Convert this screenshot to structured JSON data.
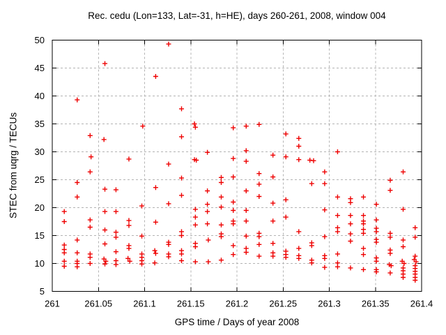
{
  "chart_data": {
    "type": "scatter",
    "title": "Rec. cedu (Lon=133, Lat=-31, h=HE), days 260-261, 2008, window 004",
    "xlabel": "GPS time / Days of year 2008",
    "ylabel": "STEC from uqrg / TECUs",
    "xlim": [
      261,
      261.4
    ],
    "ylim": [
      5,
      50
    ],
    "x_ticks": [
      261,
      261.05,
      261.1,
      261.15,
      261.2,
      261.25,
      261.3,
      261.35,
      261.4
    ],
    "x_tick_labels": [
      "261",
      "261.05",
      "261.1",
      "261.15",
      "261.2",
      "261.25",
      "261.3",
      "261.35",
      "261.4"
    ],
    "y_ticks": [
      5,
      10,
      15,
      20,
      25,
      30,
      35,
      40,
      45,
      50
    ],
    "y_tick_labels": [
      "5",
      "10",
      "15",
      "20",
      "25",
      "30",
      "35",
      "40",
      "45",
      "50"
    ],
    "grid": true,
    "legend": "none",
    "marker": "plus",
    "marker_color": "#ee0000",
    "grid_color": "#b3b3b3",
    "frame_color": "#000000",
    "series": [
      {
        "name": "STEC",
        "points": [
          [
            261.013,
            19.3
          ],
          [
            261.013,
            17.5
          ],
          [
            261.013,
            13.3
          ],
          [
            261.013,
            12.5
          ],
          [
            261.013,
            11.9
          ],
          [
            261.013,
            10.4
          ],
          [
            261.013,
            9.5
          ],
          [
            261.027,
            39.3
          ],
          [
            261.027,
            24.5
          ],
          [
            261.027,
            21.9
          ],
          [
            261.027,
            14.2
          ],
          [
            261.027,
            11.9
          ],
          [
            261.027,
            10.4
          ],
          [
            261.027,
            10.0
          ],
          [
            261.027,
            9.4
          ],
          [
            261.041,
            32.9
          ],
          [
            261.042,
            29.1
          ],
          [
            261.041,
            26.4
          ],
          [
            261.041,
            17.8
          ],
          [
            261.041,
            16.5
          ],
          [
            261.041,
            11.7
          ],
          [
            261.041,
            11.1
          ],
          [
            261.041,
            10.0
          ],
          [
            261.057,
            45.8
          ],
          [
            261.056,
            32.2
          ],
          [
            261.057,
            23.3
          ],
          [
            261.057,
            19.3
          ],
          [
            261.057,
            16.0
          ],
          [
            261.057,
            13.5
          ],
          [
            261.056,
            10.8
          ],
          [
            261.058,
            10.4
          ],
          [
            261.057,
            9.9
          ],
          [
            261.069,
            23.2
          ],
          [
            261.069,
            19.3
          ],
          [
            261.069,
            15.6
          ],
          [
            261.069,
            14.7
          ],
          [
            261.069,
            12.1
          ],
          [
            261.069,
            10.5
          ],
          [
            261.069,
            9.8
          ],
          [
            261.083,
            28.7
          ],
          [
            261.083,
            17.7
          ],
          [
            261.083,
            16.8
          ],
          [
            261.083,
            13.2
          ],
          [
            261.083,
            12.7
          ],
          [
            261.082,
            10.9
          ],
          [
            261.084,
            10.4
          ],
          [
            261.098,
            34.6
          ],
          [
            261.097,
            20.3
          ],
          [
            261.097,
            14.9
          ],
          [
            261.097,
            11.7
          ],
          [
            261.097,
            11.1
          ],
          [
            261.097,
            10.5
          ],
          [
            261.097,
            9.9
          ],
          [
            261.112,
            43.5
          ],
          [
            261.112,
            23.6
          ],
          [
            261.112,
            17.4
          ],
          [
            261.111,
            12.3
          ],
          [
            261.112,
            11.8
          ],
          [
            261.111,
            10.1
          ],
          [
            261.126,
            49.3
          ],
          [
            261.126,
            27.8
          ],
          [
            261.126,
            20.7
          ],
          [
            261.126,
            13.8
          ],
          [
            261.126,
            13.4
          ],
          [
            261.126,
            11.7
          ],
          [
            261.126,
            11.2
          ],
          [
            261.14,
            37.7
          ],
          [
            261.14,
            32.7
          ],
          [
            261.14,
            25.3
          ],
          [
            261.14,
            22.2
          ],
          [
            261.14,
            15.7
          ],
          [
            261.14,
            15.0
          ],
          [
            261.14,
            12.3
          ],
          [
            261.14,
            11.7
          ],
          [
            261.14,
            10.5
          ],
          [
            261.154,
            35.0
          ],
          [
            261.155,
            34.4
          ],
          [
            261.154,
            28.6
          ],
          [
            261.156,
            28.5
          ],
          [
            261.155,
            19.7
          ],
          [
            261.155,
            18.3
          ],
          [
            261.155,
            16.9
          ],
          [
            261.155,
            13.6
          ],
          [
            261.155,
            13.0
          ],
          [
            261.155,
            10.3
          ],
          [
            261.168,
            29.9
          ],
          [
            261.168,
            23.0
          ],
          [
            261.168,
            20.6
          ],
          [
            261.168,
            19.3
          ],
          [
            261.168,
            17.1
          ],
          [
            261.169,
            14.2
          ],
          [
            261.169,
            10.3
          ],
          [
            261.183,
            25.4
          ],
          [
            261.183,
            24.5
          ],
          [
            261.183,
            21.9
          ],
          [
            261.183,
            20.1
          ],
          [
            261.183,
            16.9
          ],
          [
            261.183,
            15.3
          ],
          [
            261.183,
            14.8
          ],
          [
            261.183,
            10.6
          ],
          [
            261.196,
            34.3
          ],
          [
            261.196,
            28.8
          ],
          [
            261.196,
            25.5
          ],
          [
            261.196,
            21.0
          ],
          [
            261.196,
            19.5
          ],
          [
            261.196,
            17.6
          ],
          [
            261.196,
            17.1
          ],
          [
            261.196,
            13.2
          ],
          [
            261.196,
            11.6
          ],
          [
            261.21,
            34.6
          ],
          [
            261.21,
            30.2
          ],
          [
            261.21,
            28.3
          ],
          [
            261.21,
            23.0
          ],
          [
            261.21,
            19.5
          ],
          [
            261.21,
            17.6
          ],
          [
            261.21,
            14.9
          ],
          [
            261.21,
            12.7
          ],
          [
            261.21,
            12.0
          ],
          [
            261.224,
            34.9
          ],
          [
            261.224,
            26.1
          ],
          [
            261.224,
            24.2
          ],
          [
            261.224,
            22.0
          ],
          [
            261.224,
            15.4
          ],
          [
            261.224,
            14.8
          ],
          [
            261.224,
            13.4
          ],
          [
            261.224,
            11.3
          ],
          [
            261.239,
            29.4
          ],
          [
            261.239,
            25.5
          ],
          [
            261.239,
            20.8
          ],
          [
            261.239,
            17.6
          ],
          [
            261.239,
            13.6
          ],
          [
            261.239,
            11.9
          ],
          [
            261.239,
            11.3
          ],
          [
            261.253,
            33.2
          ],
          [
            261.253,
            29.1
          ],
          [
            261.253,
            21.4
          ],
          [
            261.253,
            18.3
          ],
          [
            261.253,
            12.2
          ],
          [
            261.253,
            11.6
          ],
          [
            261.253,
            11.1
          ],
          [
            261.267,
            32.4
          ],
          [
            261.267,
            31.0
          ],
          [
            261.267,
            28.6
          ],
          [
            261.267,
            15.7
          ],
          [
            261.267,
            12.7
          ],
          [
            261.267,
            11.4
          ],
          [
            261.267,
            10.9
          ],
          [
            261.279,
            28.5
          ],
          [
            261.283,
            28.4
          ],
          [
            261.281,
            24.3
          ],
          [
            261.281,
            13.7
          ],
          [
            261.281,
            13.2
          ],
          [
            261.281,
            10.6
          ],
          [
            261.281,
            10.1
          ],
          [
            261.295,
            26.4
          ],
          [
            261.295,
            24.3
          ],
          [
            261.295,
            19.6
          ],
          [
            261.295,
            14.8
          ],
          [
            261.295,
            11.4
          ],
          [
            261.295,
            10.9
          ],
          [
            261.295,
            9.3
          ],
          [
            261.309,
            30.0
          ],
          [
            261.309,
            21.9
          ],
          [
            261.309,
            18.6
          ],
          [
            261.309,
            16.4
          ],
          [
            261.309,
            15.7
          ],
          [
            261.309,
            11.7
          ],
          [
            261.309,
            10.1
          ],
          [
            261.309,
            9.4
          ],
          [
            261.323,
            21.6
          ],
          [
            261.323,
            20.9
          ],
          [
            261.323,
            18.6
          ],
          [
            261.323,
            17.1
          ],
          [
            261.323,
            15.3
          ],
          [
            261.323,
            14.0
          ],
          [
            261.323,
            9.2
          ],
          [
            261.337,
            21.9
          ],
          [
            261.337,
            18.6
          ],
          [
            261.337,
            17.6
          ],
          [
            261.337,
            17.1
          ],
          [
            261.337,
            16.1
          ],
          [
            261.337,
            15.4
          ],
          [
            261.337,
            12.7
          ],
          [
            261.337,
            11.6
          ],
          [
            261.337,
            8.9
          ],
          [
            261.351,
            20.6
          ],
          [
            261.351,
            17.8
          ],
          [
            261.351,
            16.3
          ],
          [
            261.351,
            15.7
          ],
          [
            261.351,
            14.3
          ],
          [
            261.351,
            13.8
          ],
          [
            261.351,
            11.0
          ],
          [
            261.351,
            10.4
          ],
          [
            261.351,
            8.9
          ],
          [
            261.351,
            8.5
          ],
          [
            261.366,
            24.9
          ],
          [
            261.366,
            23.1
          ],
          [
            261.366,
            15.4
          ],
          [
            261.366,
            14.7
          ],
          [
            261.366,
            12.4
          ],
          [
            261.366,
            11.8
          ],
          [
            261.365,
            9.8
          ],
          [
            261.367,
            9.6
          ],
          [
            261.366,
            8.3
          ],
          [
            261.38,
            26.4
          ],
          [
            261.38,
            19.7
          ],
          [
            261.38,
            14.2
          ],
          [
            261.38,
            13.0
          ],
          [
            261.379,
            10.4
          ],
          [
            261.381,
            10.0
          ],
          [
            261.38,
            9.2
          ],
          [
            261.38,
            8.7
          ],
          [
            261.38,
            8.1
          ],
          [
            261.38,
            7.5
          ],
          [
            261.393,
            16.4
          ],
          [
            261.393,
            14.7
          ],
          [
            261.393,
            11.3
          ],
          [
            261.392,
            10.7
          ],
          [
            261.394,
            10.3
          ],
          [
            261.393,
            9.6
          ],
          [
            261.393,
            9.1
          ],
          [
            261.393,
            8.6
          ],
          [
            261.393,
            8.1
          ],
          [
            261.393,
            7.5
          ],
          [
            261.393,
            7.0
          ]
        ]
      }
    ]
  }
}
